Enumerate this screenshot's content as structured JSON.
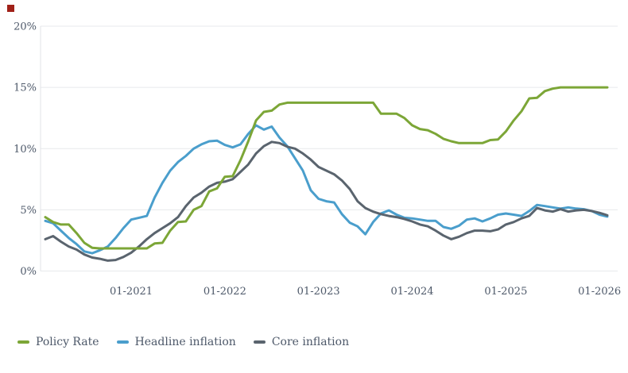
{
  "brand": {
    "mark_color": "#a02018"
  },
  "colors": {
    "text": "#4d5869",
    "grid": "#e7e9ec",
    "axis_line": "#e0e3e7",
    "background": "#ffffff"
  },
  "chart_data": {
    "type": "line",
    "title": "",
    "grid": true,
    "legend_position": "bottom-left",
    "ylim": [
      0,
      20
    ],
    "x_start": "2020-02",
    "x_end": "2026-02",
    "x_frequency": "monthly",
    "y_ticks": [
      {
        "value": 0,
        "label": "0%"
      },
      {
        "value": 5,
        "label": "5%"
      },
      {
        "value": 10,
        "label": "10%"
      },
      {
        "value": 15,
        "label": "15%"
      },
      {
        "value": 20,
        "label": "20%"
      }
    ],
    "x_ticks": [
      {
        "index": 11,
        "label": "01-2021"
      },
      {
        "index": 23,
        "label": "01-2022"
      },
      {
        "index": 35,
        "label": "01-2023"
      },
      {
        "index": 47,
        "label": "01-2024"
      },
      {
        "index": 59,
        "label": "01-2025"
      },
      {
        "index": 71,
        "label": "01-2026"
      }
    ],
    "draw_order": [
      1,
      2,
      0
    ],
    "series": [
      {
        "name": "Policy Rate",
        "color": "#7ca637",
        "values": [
          4.4,
          4,
          3.8,
          3.8,
          3.1,
          2.3,
          1.9,
          1.85,
          1.85,
          1.85,
          1.85,
          1.85,
          1.85,
          1.85,
          2.25,
          2.3,
          3.3,
          4,
          4.05,
          5,
          5.3,
          6.5,
          6.75,
          7.7,
          7.75,
          9.05,
          10.6,
          12.3,
          13,
          13.1,
          13.6,
          13.75,
          13.75,
          13.75,
          13.75,
          13.75,
          13.75,
          13.75,
          13.75,
          13.75,
          13.75,
          13.75,
          13.75,
          12.85,
          12.85,
          12.85,
          12.5,
          11.9,
          11.6,
          11.5,
          11.2,
          10.8,
          10.6,
          10.45,
          10.45,
          10.45,
          10.45,
          10.7,
          10.75,
          11.4,
          12.3,
          13.05,
          14.1,
          14.15,
          14.7,
          14.9,
          15,
          15,
          15,
          15,
          15,
          15,
          15
        ]
      },
      {
        "name": "Headline inflation",
        "color": "#4a9ecc",
        "values": [
          4.1,
          3.9,
          3.3,
          2.7,
          2.2,
          1.6,
          1.45,
          1.7,
          2,
          2.7,
          3.5,
          4.2,
          4.35,
          4.5,
          6,
          7.2,
          8.2,
          8.9,
          9.4,
          10,
          10.35,
          10.6,
          10.65,
          10.3,
          10.1,
          10.35,
          11.2,
          11.9,
          11.55,
          11.8,
          10.9,
          10.2,
          9.2,
          8.2,
          6.6,
          5.9,
          5.7,
          5.6,
          4.65,
          3.95,
          3.65,
          3,
          4,
          4.7,
          4.95,
          4.6,
          4.35,
          4.3,
          4.2,
          4.1,
          4.1,
          3.6,
          3.45,
          3.7,
          4.2,
          4.3,
          4.05,
          4.3,
          4.6,
          4.7,
          4.6,
          4.5,
          4.9,
          5.4,
          5.3,
          5.2,
          5.1,
          5.2,
          5.1,
          5.05,
          4.9,
          4.6,
          4.45
        ]
      },
      {
        "name": "Core inflation",
        "color": "#5a646e",
        "values": [
          2.6,
          2.85,
          2.4,
          2,
          1.75,
          1.35,
          1.1,
          1,
          0.85,
          0.9,
          1.15,
          1.5,
          2,
          2.6,
          3.1,
          3.5,
          3.9,
          4.4,
          5.3,
          6,
          6.4,
          6.9,
          7.2,
          7.3,
          7.5,
          8.1,
          8.7,
          9.6,
          10.2,
          10.55,
          10.45,
          10.15,
          10,
          9.6,
          9.1,
          8.5,
          8.2,
          7.9,
          7.4,
          6.7,
          5.7,
          5.15,
          4.85,
          4.65,
          4.5,
          4.4,
          4.25,
          4.05,
          3.8,
          3.65,
          3.3,
          2.9,
          2.6,
          2.8,
          3.1,
          3.3,
          3.3,
          3.25,
          3.4,
          3.8,
          4,
          4.3,
          4.5,
          5.15,
          4.95,
          4.85,
          5.05,
          4.85,
          4.95,
          5,
          4.9,
          4.75,
          4.55
        ]
      }
    ]
  }
}
